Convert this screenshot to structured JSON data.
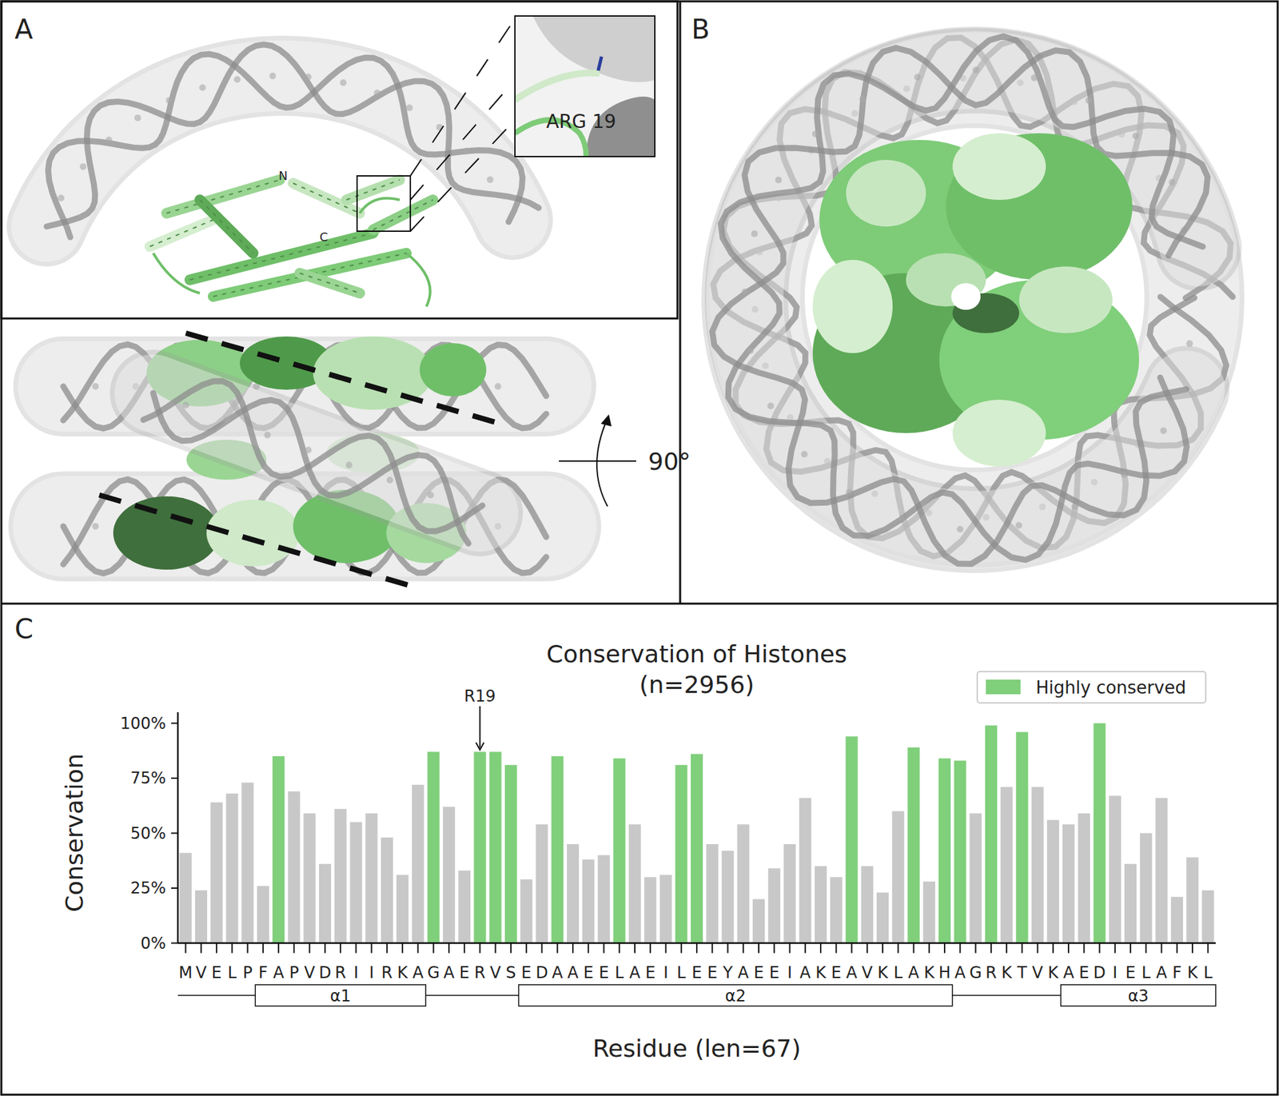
{
  "panels": {
    "A": {
      "label": "A",
      "termini": [
        "N",
        "C"
      ],
      "inset_label": "ARG 19"
    },
    "B": {
      "label": "B",
      "rotation": "90°"
    },
    "C": {
      "label": "C"
    }
  },
  "chart_data": {
    "type": "bar",
    "title": "Conservation of Histones",
    "subtitle": "(n=2956)",
    "x_label": "Residue (len=67)",
    "y_label": "Conservation",
    "categories": [
      "M",
      "V",
      "E",
      "L",
      "P",
      "F",
      "A",
      "P",
      "V",
      "D",
      "R",
      "I",
      "I",
      "R",
      "K",
      "A",
      "G",
      "A",
      "E",
      "R",
      "V",
      "S",
      "E",
      "D",
      "A",
      "A",
      "E",
      "E",
      "L",
      "A",
      "E",
      "I",
      "L",
      "E",
      "E",
      "Y",
      "A",
      "E",
      "E",
      "I",
      "A",
      "K",
      "E",
      "A",
      "V",
      "K",
      "L",
      "A",
      "K",
      "H",
      "A",
      "G",
      "R",
      "K",
      "T",
      "V",
      "K",
      "A",
      "E",
      "D",
      "I",
      "E",
      "L",
      "A",
      "F",
      "K",
      "L"
    ],
    "series": [
      {
        "name": "Highly conserved",
        "color": "#80cf7b",
        "values": [
          null,
          null,
          null,
          null,
          null,
          null,
          85,
          null,
          null,
          null,
          null,
          null,
          null,
          null,
          null,
          null,
          87,
          null,
          null,
          87,
          87,
          81,
          null,
          null,
          85,
          null,
          null,
          null,
          84,
          null,
          null,
          null,
          81,
          86,
          null,
          null,
          null,
          null,
          null,
          null,
          null,
          null,
          null,
          94,
          null,
          null,
          null,
          89,
          null,
          84,
          83,
          null,
          99,
          null,
          96,
          null,
          null,
          null,
          null,
          100,
          null,
          null,
          null,
          null,
          null,
          null,
          null
        ]
      },
      {
        "color": "#c8c8c8",
        "values": [
          41,
          24,
          64,
          68,
          73,
          26,
          null,
          69,
          59,
          36,
          61,
          55,
          59,
          48,
          31,
          72,
          null,
          62,
          33,
          null,
          null,
          null,
          29,
          54,
          null,
          45,
          38,
          40,
          null,
          54,
          30,
          31,
          null,
          null,
          45,
          42,
          54,
          20,
          34,
          45,
          66,
          35,
          30,
          null,
          35,
          23,
          60,
          null,
          28,
          null,
          null,
          59,
          null,
          71,
          null,
          71,
          56,
          54,
          59,
          null,
          67,
          36,
          50,
          66,
          21,
          39,
          24
        ]
      }
    ],
    "stacked": true,
    "legend": "upper right",
    "grid": false,
    "ylim": [
      0,
      105
    ],
    "yticks": [
      {
        "value": 0,
        "label": "0%"
      },
      {
        "value": 25,
        "label": "25%"
      },
      {
        "value": 50,
        "label": "50%"
      },
      {
        "value": 75,
        "label": "75%"
      },
      {
        "value": 100,
        "label": "100%"
      }
    ],
    "annotations": [
      {
        "text": "R19",
        "index": 19
      }
    ],
    "secondary_structure": [
      {
        "label": "α1",
        "start": 5,
        "end": 15
      },
      {
        "label": "α2",
        "start": 22,
        "end": 49
      },
      {
        "label": "α3",
        "start": 57,
        "end": 66
      }
    ]
  }
}
